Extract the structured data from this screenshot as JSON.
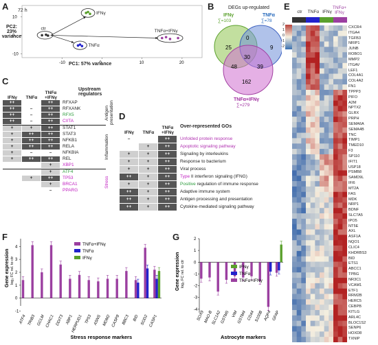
{
  "panels": {
    "A": {
      "label": "A",
      "time": "72 h",
      "pc1": "PC1: 57% variance",
      "pc2": "PC2:\n23% variance",
      "groups": [
        "ctr",
        "IFNγ",
        "TNFα",
        "TNFα+IFNγ"
      ],
      "xticks": [
        "-10",
        "0",
        "10",
        "20"
      ],
      "yticks": [
        "-10",
        "0",
        "10"
      ],
      "points": [
        {
          "group": "ctr",
          "x": -15,
          "y": 0
        },
        {
          "group": "ctr",
          "x": -14,
          "y": 0.3
        },
        {
          "group": "ctr",
          "x": -13.5,
          "y": -0.2
        },
        {
          "group": "IFNγ",
          "x": -4,
          "y": 12
        },
        {
          "group": "IFNγ",
          "x": -3.5,
          "y": 12.5
        },
        {
          "group": "IFNγ",
          "x": -3,
          "y": 11.5
        },
        {
          "group": "TNFα",
          "x": -6,
          "y": -5.5
        },
        {
          "group": "TNFα",
          "x": -5.5,
          "y": -5
        },
        {
          "group": "TNFα",
          "x": -5,
          "y": -5.8
        },
        {
          "group": "TNFα+IFNγ",
          "x": 15,
          "y": -1.5
        },
        {
          "group": "TNFα+IFNγ",
          "x": 16,
          "y": -1
        },
        {
          "group": "TNFα+IFNγ",
          "x": 17,
          "y": -2
        },
        {
          "group": "TNFα+IFNγ",
          "x": 19,
          "y": -1.5
        }
      ]
    },
    "B": {
      "label": "B",
      "title": "DEGs up-regulated",
      "ifng": "IFNγ",
      "ifng_sum": "∑=103",
      "tnfa": "TNFα",
      "tnfa_sum": "∑=78",
      "combo": "TNFα+IFNγ",
      "combo_sum": "∑=279",
      "regions": {
        "ifng_only": "25",
        "tnfa_only": "9",
        "ifng_tnfa": "0",
        "center": "30",
        "ifng_combo": "48",
        "tnfa_combo": "39",
        "combo_only": "162"
      }
    },
    "C": {
      "label": "C",
      "headers": [
        "IFNγ",
        "TNFα",
        "TNFα\n+IFNγ"
      ],
      "title": "Upstream\nregulators",
      "groups": [
        {
          "name": "Antigen\npresentation",
          "start": 0,
          "end": 3
        },
        {
          "name": "Inflammation",
          "start": 4,
          "end": 10
        },
        {
          "name": "Stress",
          "start": 11,
          "end": 15
        }
      ],
      "rows": [
        {
          "gene": "RFXAP",
          "vals": [
            "++",
            "",
            "++"
          ]
        },
        {
          "gene": "RFXANK",
          "vals": [
            "++",
            "–",
            "++"
          ]
        },
        {
          "gene": "RFX5",
          "vals": [
            "++",
            "–",
            "++"
          ]
        },
        {
          "gene": "CIITA",
          "vals": [
            "++",
            "–",
            "++"
          ]
        },
        {
          "gene": "STAT1",
          "vals": [
            "+",
            "+",
            "++"
          ]
        },
        {
          "gene": "STAT3",
          "vals": [
            "+",
            "++",
            "++"
          ]
        },
        {
          "gene": "NFKB1",
          "vals": [
            "+",
            "++",
            "++"
          ]
        },
        {
          "gene": "RELA",
          "vals": [
            "+",
            "++",
            "++"
          ]
        },
        {
          "gene": "NFKBIA",
          "vals": [
            "+",
            "–",
            "–"
          ]
        },
        {
          "gene": "REL",
          "vals": [
            "+",
            "++",
            "++"
          ]
        },
        {
          "gene": "XBP1",
          "vals": [
            "",
            "",
            "+"
          ]
        },
        {
          "gene": "ATF4",
          "vals": [
            "",
            "",
            "+"
          ]
        },
        {
          "gene": "TP53",
          "vals": [
            "",
            "+",
            "++"
          ]
        },
        {
          "gene": "BRCA1",
          "vals": [
            "",
            "",
            "+"
          ]
        },
        {
          "gene": "PPARG",
          "vals": [
            "",
            "",
            "–"
          ]
        }
      ]
    },
    "D": {
      "label": "D",
      "headers": [
        "IFNγ",
        "TNFα",
        "TNFα\n+IFNγ"
      ],
      "title": "Over-represented GOs",
      "rows": [
        {
          "go": "Unfolded protein response",
          "vals": [
            "–",
            "",
            "++"
          ]
        },
        {
          "go": "Apoptotic signaling pathway",
          "vals": [
            "",
            "+",
            "++"
          ]
        },
        {
          "go": "Signaling by interleukins",
          "vals": [
            "+",
            "+",
            "++"
          ]
        },
        {
          "go": "Response to bacterium",
          "vals": [
            "+",
            "+",
            "++"
          ]
        },
        {
          "go": "Viral process",
          "vals": [
            "+",
            "+",
            "++"
          ]
        },
        {
          "go": "Type II interferon signaling (IFNG)",
          "vals": [
            "++",
            "+",
            "++"
          ]
        },
        {
          "go": "Positive regulation of immune response",
          "vals": [
            "+",
            "+",
            "++"
          ]
        },
        {
          "go": "Adaptive immune system",
          "vals": [
            "++",
            "+",
            "++"
          ]
        },
        {
          "go": "Antigen processing and presentation",
          "vals": [
            "++",
            "+",
            "++"
          ]
        },
        {
          "go": "Cytokine-mediated signaling pathway",
          "vals": [
            "++",
            "+",
            "++"
          ]
        }
      ]
    },
    "E": {
      "label": "E",
      "columns": [
        "ctr",
        "TNFα",
        "IFNγ",
        "TNFα+\nIFNγ"
      ],
      "zscore": "z-score",
      "scale": [
        "2",
        "1",
        "0",
        "-1",
        "-2"
      ],
      "genes": [
        "CXCR4",
        "ITGA4",
        "TGFB3",
        "NRIP1",
        "JUNB",
        "ROBO1",
        "MMP2",
        "ITGAV",
        "LEF1",
        "COL4A1",
        "COL4A2",
        "FN1",
        "TPPP3",
        "PIFO",
        "A2M",
        "NPTX2",
        "GLRX",
        "PRPH",
        "SEMA6A",
        "SEMA4B",
        "TNC",
        "TIMP1",
        "TMED10",
        "F3",
        "SP110",
        "IFIT1",
        "USP18",
        "PSMB8",
        "SAMD9L",
        "IFI6",
        "MT2A",
        "FAS",
        "MDK",
        "NRP1",
        "BDNF",
        "SLC7A5",
        "IPO5",
        "NT5E",
        "AXL",
        "ASF1A",
        "NQO1",
        "CLIC4",
        "KHDRBS3",
        "BID",
        "ETS1",
        "ABCC1",
        "TPBG",
        "NR3C1",
        "VCAM1",
        "ETF1",
        "RRM2B",
        "HERC5",
        "CEBPB",
        "KITLG",
        "ARL4C",
        "BLOC1S2",
        "SENP6",
        "HOXD8",
        "TXNIP"
      ]
    },
    "F": {
      "label": "F",
      "ylabel": "Gene expression",
      "ysub": "log₂ FC rel. to ctr",
      "xlabel": "Stress response markers",
      "legend": [
        "TNFα+IFNγ",
        "TNFα",
        "IFNγ"
      ],
      "yticks": [
        "-1",
        "0",
        "1",
        "2",
        "3",
        "4"
      ],
      "genes": [
        "ATF4",
        "TRIB3",
        "GCLM",
        "CHAC1",
        "DDIT3",
        "XBP1",
        "HERPUD1",
        "TP53",
        "ASNS",
        "MDM2",
        "CASP8",
        "BBC3",
        "BID",
        "SOD2",
        "CASP1"
      ],
      "series": [
        {
          "name": "TNFα+IFNγ",
          "values": [
            1.4,
            4.1,
            2.0,
            4.1,
            2.6,
            1.5,
            1.8,
            1.4,
            1.3,
            1.5,
            1.5,
            2.1,
            1.4,
            3.9,
            2.2
          ]
        },
        {
          "name": "TNFα",
          "values": [
            null,
            null,
            null,
            null,
            null,
            null,
            null,
            null,
            null,
            null,
            null,
            null,
            1.2,
            2.3,
            1.5
          ]
        },
        {
          "name": "IFNγ",
          "values": [
            null,
            null,
            null,
            null,
            null,
            null,
            null,
            null,
            null,
            null,
            null,
            null,
            null,
            null,
            2.1
          ]
        }
      ]
    },
    "G": {
      "label": "G",
      "ylabel": "Gene expression",
      "ysub": "log₂ FC rel. to ctr",
      "xlabel": "Astrocyte markers",
      "legend": [
        "IFNγ",
        "TNFα",
        "TNFα+IFNγ"
      ],
      "yticks": [
        "-4",
        "-3",
        "-2",
        "-1",
        "0",
        "1",
        "2"
      ],
      "genes": [
        "SOX9",
        "MAO-B",
        "SLC1A2",
        "GSTM5",
        "VIM",
        "GSTM4",
        "CD44",
        "S100B",
        "AQP4",
        "GFAP"
      ],
      "series": [
        {
          "name": "TNFα+IFNγ",
          "values": [
            -1.4,
            -1.3,
            -2.5,
            -1.5,
            -1.2,
            -1.3,
            -1.2,
            -1.6,
            -3.8,
            -0.9
          ]
        },
        {
          "name": "TNFα",
          "values": [
            null,
            null,
            null,
            null,
            null,
            null,
            null,
            null,
            -0.8,
            -0.7
          ]
        },
        {
          "name": "IFNγ",
          "values": [
            null,
            null,
            null,
            null,
            null,
            null,
            null,
            null,
            null,
            1.5
          ]
        }
      ]
    }
  },
  "colors": {
    "ctr": "#333333",
    "ifng": "#5aa02c",
    "tnfa": "#2222cc",
    "combo": "#9b3fa0",
    "pink": "#c020c0",
    "hm_pos": "#b22222",
    "hm_neg": "#3060a8"
  }
}
